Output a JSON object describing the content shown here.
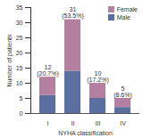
{
  "chart_data": {
    "type": "bar",
    "stacked": true,
    "x_label": "NYHA classification",
    "y_label": "Number of patients",
    "categories": [
      "I",
      "II",
      "III",
      "IV"
    ],
    "series": [
      {
        "name": "Female",
        "color": "#b3819f",
        "values": [
          6,
          17,
          5,
          3
        ]
      },
      {
        "name": "Male",
        "color": "#5b6f9e",
        "values": [
          6,
          14,
          5,
          2
        ]
      }
    ],
    "totals": [
      12,
      31,
      10,
      5
    ],
    "total_labels": [
      "12\n(20.7%)",
      "31\n(53.5%)",
      "10\n(17.2%)",
      "5\n(8.6%)"
    ],
    "ylim": [
      0,
      35
    ],
    "yticks": [
      0,
      5,
      10,
      15,
      20,
      25,
      30,
      35
    ],
    "legend": "top-right",
    "grid": false
  }
}
